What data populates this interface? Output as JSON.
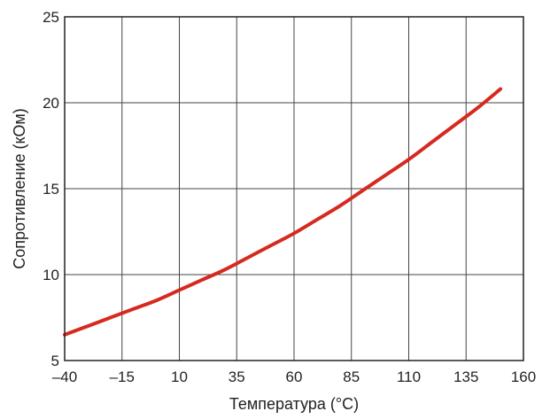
{
  "chart_data": {
    "type": "line",
    "title": "",
    "xlabel": "Температура (°C)",
    "ylabel": "Сопротивление (кОм)",
    "xlim": [
      -40,
      160
    ],
    "ylim": [
      5,
      25
    ],
    "x_ticks": [
      -40,
      -15,
      10,
      35,
      60,
      85,
      110,
      135,
      160
    ],
    "x_tick_labels": [
      "–40",
      "–15",
      "10",
      "35",
      "60",
      "85",
      "110",
      "135",
      "160"
    ],
    "y_ticks": [
      5,
      10,
      15,
      20,
      25
    ],
    "y_tick_labels": [
      "5",
      "10",
      "15",
      "20",
      "25"
    ],
    "grid": true,
    "legend": "none",
    "series": [
      {
        "color": "#d62a20",
        "x": [
          -40,
          -30,
          -20,
          -10,
          0,
          10,
          20,
          30,
          40,
          50,
          60,
          70,
          80,
          90,
          100,
          110,
          120,
          130,
          140,
          150
        ],
        "y": [
          6.5,
          7.0,
          7.5,
          8.0,
          8.5,
          9.1,
          9.7,
          10.3,
          11.0,
          11.7,
          12.4,
          13.2,
          14.0,
          14.9,
          15.8,
          16.7,
          17.7,
          18.7,
          19.7,
          20.8
        ]
      }
    ]
  }
}
